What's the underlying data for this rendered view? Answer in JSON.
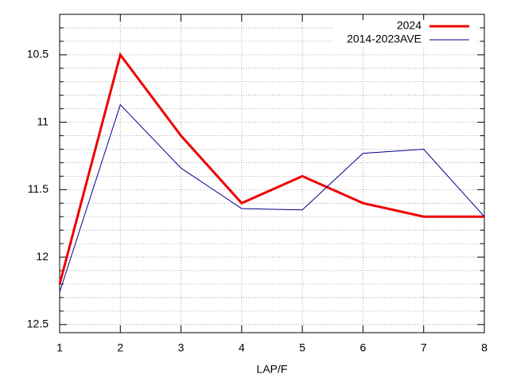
{
  "chart_data": {
    "type": "line",
    "x_label": "LAP/F",
    "x": [
      1,
      2,
      3,
      4,
      5,
      6,
      7,
      8
    ],
    "series": [
      {
        "name": "2024",
        "color": "#ee0000",
        "values": [
          12.2,
          10.5,
          11.1,
          11.6,
          11.4,
          11.6,
          11.7,
          11.7
        ]
      },
      {
        "name": "2014-2023AVE",
        "color": "#00008b",
        "values": [
          12.26,
          10.87,
          11.34,
          11.64,
          11.65,
          11.23,
          11.2,
          11.7
        ]
      }
    ],
    "xlim": [
      1,
      8
    ],
    "xticks": [
      1,
      2,
      3,
      4,
      5,
      6,
      7,
      8
    ],
    "ylim": [
      12.56,
      10.2
    ],
    "yticks": [
      10.5,
      11,
      11.5,
      12,
      12.5
    ],
    "yminorticks": [
      10.3,
      10.4,
      10.6,
      10.7,
      10.8,
      10.9,
      11.1,
      11.2,
      11.3,
      11.4,
      11.6,
      11.7,
      11.8,
      11.9,
      12.1,
      12.2,
      12.3,
      12.4
    ],
    "y_reversed": true,
    "grid": true,
    "legend": "top-right"
  }
}
